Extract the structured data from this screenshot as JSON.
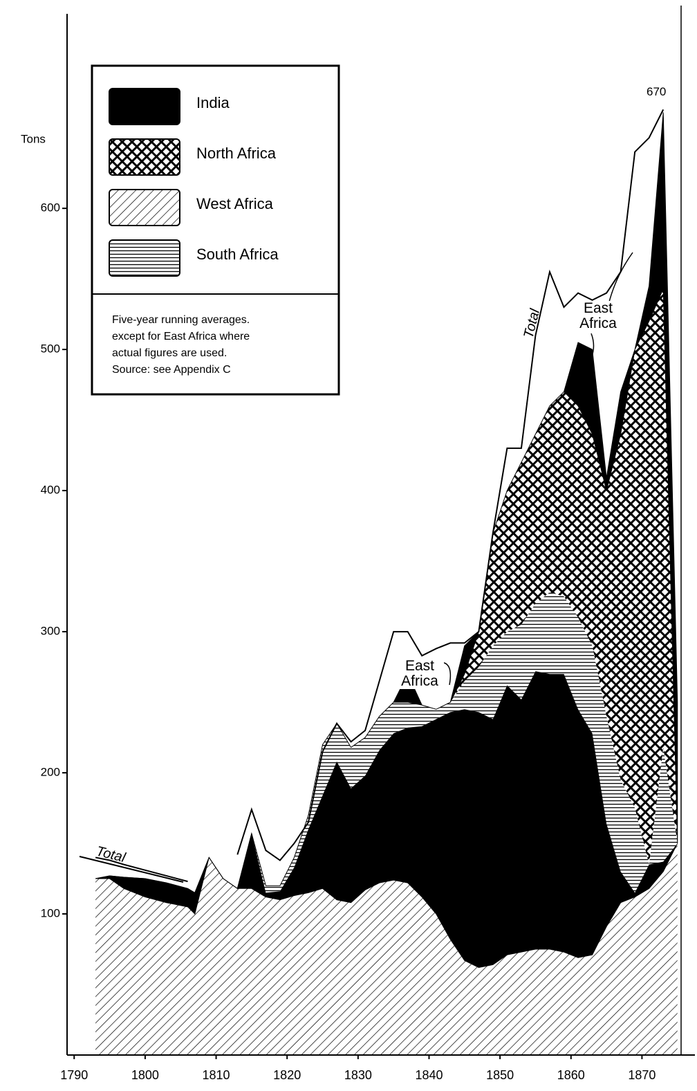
{
  "chart_data": {
    "type": "stacked_area",
    "ylabel": "Tons",
    "x": [
      1793,
      1795,
      1797,
      1800,
      1803,
      1806,
      1807,
      1809,
      1811,
      1813,
      1815,
      1817,
      1819,
      1821,
      1823,
      1825,
      1827,
      1829,
      1831,
      1833,
      1835,
      1837,
      1839,
      1841,
      1843,
      1845,
      1847,
      1849,
      1851,
      1853,
      1855,
      1857,
      1859,
      1861,
      1863,
      1865,
      1867,
      1869,
      1871,
      1873,
      1875
    ],
    "series": [
      {
        "name": "West Africa",
        "color": "#000000",
        "pattern": "diagonal",
        "values": [
          125,
          125,
          118,
          112,
          108,
          105,
          100,
          140,
          125,
          118,
          118,
          112,
          110,
          113,
          115,
          118,
          110,
          108,
          117,
          122,
          124,
          122,
          112,
          100,
          82,
          67,
          62,
          64,
          71,
          73,
          75,
          75,
          73,
          69,
          71,
          91,
          108,
          112,
          118,
          130,
          150
        ]
      },
      {
        "name": "India",
        "color": "#000000",
        "pattern": "solid",
        "values": [
          0,
          2,
          8,
          13,
          14,
          13,
          15,
          0,
          0,
          0,
          39,
          3,
          6,
          20,
          45,
          66,
          98,
          81,
          81,
          94,
          104,
          110,
          121,
          138,
          161,
          178,
          181,
          174,
          191,
          179,
          197,
          195,
          197,
          176,
          157,
          73,
          22,
          3,
          17,
          7,
          0
        ]
      },
      {
        "name": "South Africa",
        "color": "#000000",
        "pattern": "horizontal",
        "values": [
          0,
          0,
          0,
          0,
          0,
          0,
          0,
          0,
          0,
          0,
          0,
          5,
          4,
          7,
          10,
          36,
          27,
          29,
          27,
          24,
          22,
          18,
          15,
          7,
          7,
          20,
          32,
          52,
          38,
          53,
          48,
          58,
          55,
          65,
          62,
          76,
          65,
          60,
          0,
          81,
          0
        ]
      },
      {
        "name": "North Africa",
        "color": "#000000",
        "pattern": "crosshatch",
        "values": [
          0,
          0,
          0,
          0,
          0,
          0,
          0,
          0,
          0,
          0,
          0,
          0,
          0,
          0,
          0,
          0,
          0,
          0,
          0,
          0,
          0,
          0,
          0,
          0,
          0,
          5,
          25,
          80,
          100,
          115,
          120,
          132,
          145,
          150,
          150,
          160,
          245,
          325,
          385,
          325,
          0
        ]
      },
      {
        "name": "East Africa",
        "color": "#000000",
        "pattern": "solid",
        "values": [
          0,
          0,
          0,
          0,
          0,
          0,
          0,
          0,
          0,
          0,
          0,
          0,
          0,
          0,
          0,
          0,
          0,
          0,
          0,
          0,
          0,
          20,
          0,
          0,
          0,
          20,
          0,
          0,
          0,
          0,
          0,
          0,
          0,
          45,
          60,
          9,
          30,
          0,
          25,
          125,
          100
        ]
      }
    ],
    "total": {
      "name": "Total",
      "color": "#000000",
      "values": [
        140,
        138,
        135,
        131,
        127,
        123,
        null,
        null,
        null,
        142,
        174,
        145,
        138,
        150,
        165,
        215,
        235,
        222,
        230,
        265,
        300,
        300,
        283,
        288,
        292,
        292,
        300,
        370,
        430,
        430,
        510,
        555,
        530,
        540,
        535,
        540,
        555,
        640,
        650,
        670,
        null
      ]
    },
    "legend_order": [
      1,
      3,
      0,
      2
    ],
    "note": [
      "Five-year running averages.",
      "except for East Africa where",
      "actual figures are used.",
      "Source: see Appendix C"
    ],
    "xlim": [
      1789,
      1876
    ],
    "xticks": [
      1790,
      1800,
      1810,
      1820,
      1830,
      1840,
      1850,
      1860,
      1870
    ],
    "ylim": [
      0,
      730
    ],
    "yticks": [
      100,
      200,
      300,
      400,
      500,
      600
    ],
    "grid": false
  }
}
